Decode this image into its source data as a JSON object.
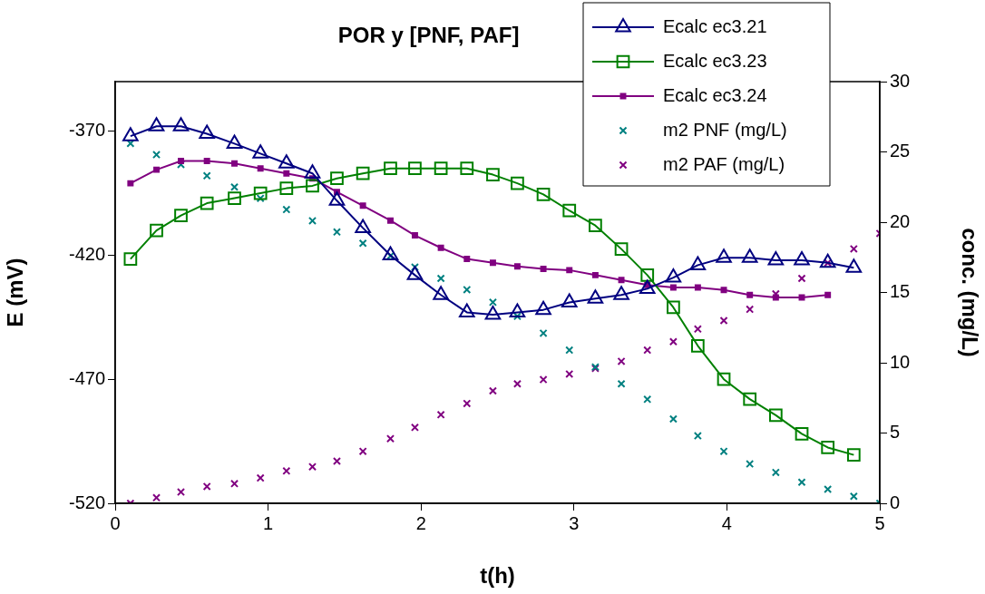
{
  "chart_data": {
    "type": "line",
    "title": "POR y [PNF, PAF]",
    "xlabel": "t(h)",
    "ylabel": "E (mV)",
    "y2label": "conc. (mg/L)",
    "x": [
      0.1,
      0.27,
      0.43,
      0.6,
      0.78,
      0.95,
      1.12,
      1.29,
      1.45,
      1.62,
      1.8,
      1.96,
      2.13,
      2.3,
      2.47,
      2.63,
      2.8,
      2.97,
      3.14,
      3.31,
      3.48,
      3.65,
      3.81,
      3.98,
      4.15,
      4.32,
      4.49,
      4.66,
      4.83,
      5.0
    ],
    "xlim": [
      0,
      5
    ],
    "xticks": [
      0,
      1,
      2,
      3,
      4,
      5
    ],
    "ylim": [
      -520,
      -350
    ],
    "yticks": [
      -520,
      -470,
      -420,
      -370
    ],
    "y2lim": [
      0,
      30
    ],
    "y2ticks": [
      0,
      5,
      10,
      15,
      20,
      25,
      30
    ],
    "grid": false,
    "legend": "top right",
    "line_style": "solid",
    "series": [
      {
        "name": "Ecalc ec3.21",
        "marker": "triangle",
        "x": [
          0.1,
          0.27,
          0.43,
          0.6,
          0.78,
          0.95,
          1.12,
          1.29,
          1.45,
          1.62,
          1.8,
          1.96,
          2.13,
          2.3,
          2.47,
          2.63,
          2.8,
          2.97,
          3.14,
          3.31,
          3.48,
          3.65,
          3.81,
          3.98,
          4.15,
          4.32,
          4.49,
          4.66,
          4.83
        ],
        "color": "#000080",
        "values": [
          -372,
          -368,
          -368,
          -371,
          -375,
          -379,
          -383,
          -387,
          -398,
          -409,
          -420,
          -428,
          -436,
          -443,
          -444,
          -443,
          -442,
          -439,
          -437.5,
          -436,
          -433.5,
          -429,
          -424,
          -421,
          -421,
          -422,
          -422,
          -423,
          -425
        ]
      },
      {
        "name": "Ecalc ec3.23",
        "marker": "square",
        "x": [
          0.1,
          0.27,
          0.43,
          0.6,
          0.78,
          0.95,
          1.12,
          1.29,
          1.45,
          1.62,
          1.8,
          1.96,
          2.13,
          2.3,
          2.47,
          2.63,
          2.8,
          2.97,
          3.14,
          3.31,
          3.48,
          3.65,
          3.81,
          3.98,
          4.15,
          4.32,
          4.49,
          4.66,
          4.83
        ],
        "color": "#008000",
        "values": [
          -421.5,
          -410,
          -404,
          -399,
          -397,
          -395,
          -393,
          -392,
          -389,
          -387,
          -385,
          -385,
          -385,
          -385,
          -387.5,
          -391,
          -395.5,
          -402,
          -408,
          -417.5,
          -428,
          -441,
          -456.5,
          -470,
          -478,
          -484.5,
          -492,
          -497.5,
          -500.5
        ]
      },
      {
        "name": "Ecalc ec3.24",
        "marker": "square",
        "x": [
          0.1,
          0.27,
          0.43,
          0.6,
          0.78,
          0.95,
          1.12,
          1.29,
          1.45,
          1.62,
          1.8,
          1.96,
          2.13,
          2.3,
          2.47,
          2.63,
          2.8,
          2.97,
          3.14,
          3.31,
          3.48,
          3.65,
          3.81,
          3.98,
          4.15,
          4.32,
          4.49,
          4.66
        ],
        "color": "#800080",
        "values": [
          -391,
          -385.5,
          -382,
          -382,
          -383,
          -385,
          -387,
          -389,
          -394.5,
          -400,
          -406,
          -412,
          -417,
          -421.5,
          -423,
          -424.5,
          -425.5,
          -426,
          -428,
          -430,
          -432,
          -433,
          -433,
          -434,
          -436,
          -437,
          -437,
          -436
        ]
      },
      {
        "name": "m2 PNF (mg/L)",
        "type": "scatter",
        "marker": "cross",
        "axis": "y2",
        "color": "#008080",
        "values": [
          25.6,
          24.8,
          24.1,
          23.3,
          22.5,
          21.7,
          20.9,
          20.1,
          19.3,
          18.5,
          17.6,
          16.8,
          16.0,
          15.2,
          14.3,
          13.3,
          12.1,
          10.9,
          9.7,
          8.5,
          7.4,
          6.0,
          4.8,
          3.7,
          2.8,
          2.2,
          1.5,
          1.0,
          0.5,
          0
        ]
      },
      {
        "name": "m2 PAF (mg/L)",
        "type": "scatter",
        "marker": "cross",
        "axis": "y2",
        "color": "#800080",
        "values": [
          0,
          0.4,
          0.8,
          1.2,
          1.4,
          1.8,
          2.3,
          2.6,
          3.0,
          3.7,
          4.6,
          5.4,
          6.3,
          7.1,
          8.0,
          8.5,
          8.8,
          9.2,
          9.6,
          10.1,
          10.9,
          11.5,
          12.4,
          13.0,
          13.8,
          14.9,
          16.0,
          17.1,
          18.1,
          19.2
        ]
      }
    ]
  }
}
